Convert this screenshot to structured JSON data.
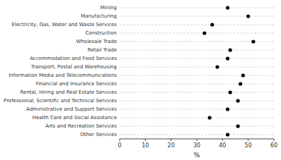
{
  "chart_data": {
    "type": "dot",
    "orientation": "horizontal",
    "categories": [
      "Mining",
      "Manufacturing",
      "Electricity, Gas, Water and Waste Services",
      "Construction",
      "Wholesale Trade",
      "Retail Trade",
      "Accommodation and Food Services",
      "Transport, Postal and Warehousing",
      "Information Media and Telecommunications",
      "Financial and Insurance Services",
      "Rental, Hiring and Real Estate Services",
      "Professional, Scientific and Technical Services",
      "Administrative and Support Services",
      "Health Care and Social Assistance",
      "Arts and Recreation Services",
      "Other Services"
    ],
    "values": [
      42,
      50,
      36,
      33,
      52,
      43,
      42,
      38,
      48,
      47,
      43,
      46,
      42,
      35,
      46,
      42
    ],
    "color": "#000000",
    "xlim": [
      0,
      60
    ],
    "xticks": [
      0,
      10,
      20,
      30,
      40,
      50,
      60
    ],
    "xlabel": "%",
    "grid": true
  }
}
